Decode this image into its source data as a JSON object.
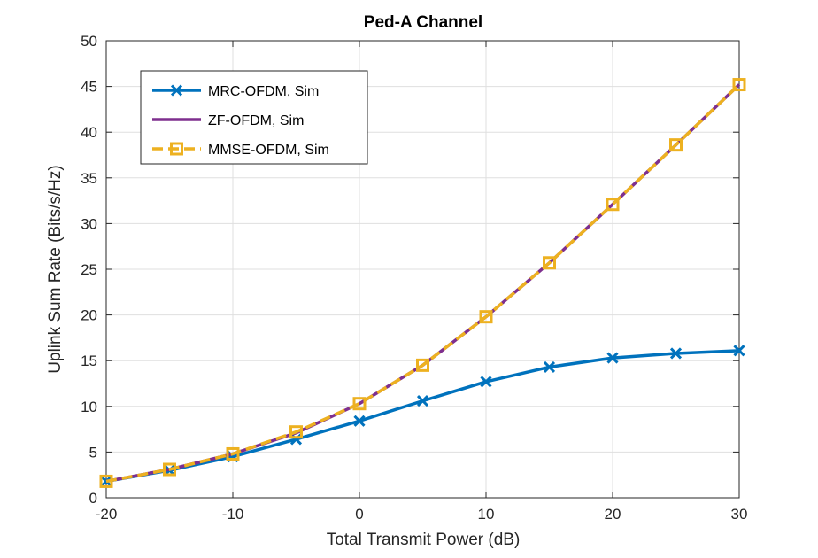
{
  "chart_data": {
    "type": "line",
    "title": "Ped-A Channel",
    "xlabel": "Total Transmit Power (dB)",
    "ylabel": "Uplink Sum Rate (Bits/s/Hz)",
    "xlim": [
      -20,
      30
    ],
    "ylim": [
      0,
      50
    ],
    "xticks": [
      "-20",
      "-10",
      "0",
      "10",
      "20",
      "30"
    ],
    "yticks": [
      "0",
      "5",
      "10",
      "15",
      "20",
      "25",
      "30",
      "35",
      "40",
      "45",
      "50"
    ],
    "grid": true,
    "legend_position": "top-left",
    "x": [
      -20,
      -15,
      -10,
      -5,
      0,
      5,
      10,
      15,
      20,
      25,
      30
    ],
    "series": [
      {
        "name": "MRC-OFDM, Sim",
        "color": "#0072BD",
        "marker": "x",
        "line_style": "solid",
        "values": [
          1.8,
          3.0,
          4.5,
          6.4,
          8.4,
          10.6,
          12.7,
          14.3,
          15.3,
          15.8,
          16.1
        ]
      },
      {
        "name": "ZF-OFDM, Sim",
        "color": "#7E2F8E",
        "marker": "none",
        "line_style": "solid",
        "values": [
          1.8,
          3.1,
          4.8,
          7.1,
          10.3,
          14.5,
          19.8,
          25.7,
          32.1,
          38.6,
          45.2
        ]
      },
      {
        "name": "MMSE-OFDM, Sim",
        "color": "#EDB120",
        "marker": "square",
        "line_style": "dashed",
        "values": [
          1.8,
          3.1,
          4.8,
          7.2,
          10.3,
          14.5,
          19.8,
          25.7,
          32.1,
          38.6,
          45.2
        ]
      }
    ]
  }
}
